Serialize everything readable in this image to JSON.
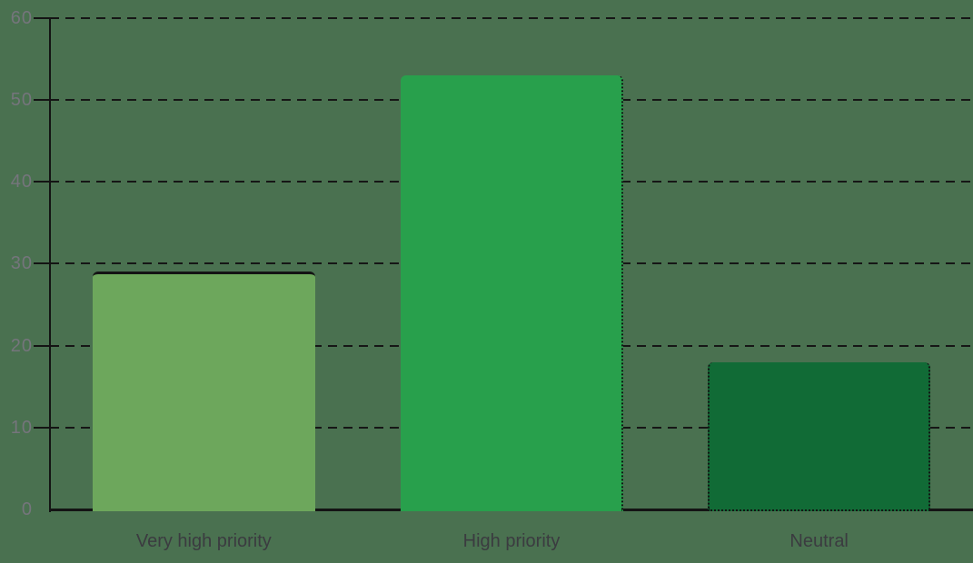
{
  "chart_data": {
    "type": "bar",
    "title": "",
    "xlabel": "",
    "ylabel": "",
    "categories": [
      "Very high priority",
      "High priority",
      "Neutral"
    ],
    "values": [
      29,
      53,
      18
    ],
    "bar_colors": [
      "#6da75c",
      "#28a04c",
      "#116b36"
    ],
    "bar_edge_strokes": [
      {
        "top": "solid"
      },
      {
        "right": "dotted"
      },
      {
        "left": "dotted",
        "right": "dotted",
        "bottom": "dotted"
      }
    ],
    "ylim": [
      0,
      60
    ],
    "yticks": [
      0,
      10,
      20,
      30,
      40,
      50,
      60
    ],
    "grid": "horizontal-dashed",
    "legend": "none",
    "colors": {
      "background": "#4a7150",
      "grid_line": "#161616",
      "axis_line": "#141414",
      "y_tick_label": "#75757c",
      "x_tick_label": "#3b3b40"
    }
  }
}
